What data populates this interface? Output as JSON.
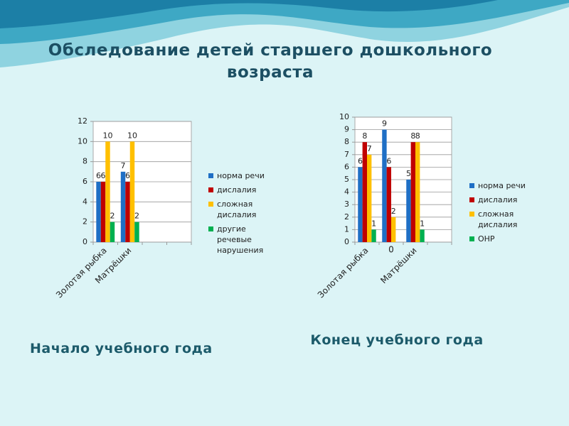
{
  "title": "Обследование детей старшего дошкольного возраста",
  "chart_data": [
    {
      "type": "bar",
      "caption": "Начало учебного года",
      "categories": [
        "Золотая рыбка",
        "Матрёшки",
        null,
        null
      ],
      "series": [
        {
          "name": "норма речи",
          "color": "#1f6fc5",
          "values": [
            6,
            7,
            null,
            null
          ]
        },
        {
          "name": "дислалия",
          "color": "#c00000",
          "values": [
            6,
            6,
            null,
            null
          ]
        },
        {
          "name": "сложная дислалия",
          "color": "#ffc000",
          "values": [
            10,
            10,
            null,
            null
          ]
        },
        {
          "name": "другие речевые нарушения",
          "color": "#00b050",
          "values": [
            2,
            2,
            null,
            null
          ]
        }
      ],
      "ylim": [
        0,
        12
      ],
      "yticks": [
        0,
        2,
        4,
        6,
        8,
        10,
        12
      ],
      "grid": true,
      "legend": "right"
    },
    {
      "type": "bar",
      "caption": "Конец учебного года",
      "categories": [
        "Золотая рыбка",
        "0",
        "Матрёшки",
        null
      ],
      "series": [
        {
          "name": "норма речи",
          "color": "#1f6fc5",
          "values": [
            6,
            9,
            5,
            null
          ]
        },
        {
          "name": "дислалия",
          "color": "#c00000",
          "values": [
            8,
            6,
            8,
            null
          ]
        },
        {
          "name": "сложная дислалия",
          "color": "#ffc000",
          "values": [
            7,
            2,
            8,
            null
          ]
        },
        {
          "name": "ОНР",
          "color": "#00b050",
          "values": [
            1,
            null,
            1,
            null
          ]
        }
      ],
      "ylim": [
        0,
        10
      ],
      "yticks": [
        0,
        1,
        2,
        3,
        4,
        5,
        6,
        7,
        8,
        9,
        10
      ],
      "grid": true,
      "legend": "right"
    }
  ]
}
